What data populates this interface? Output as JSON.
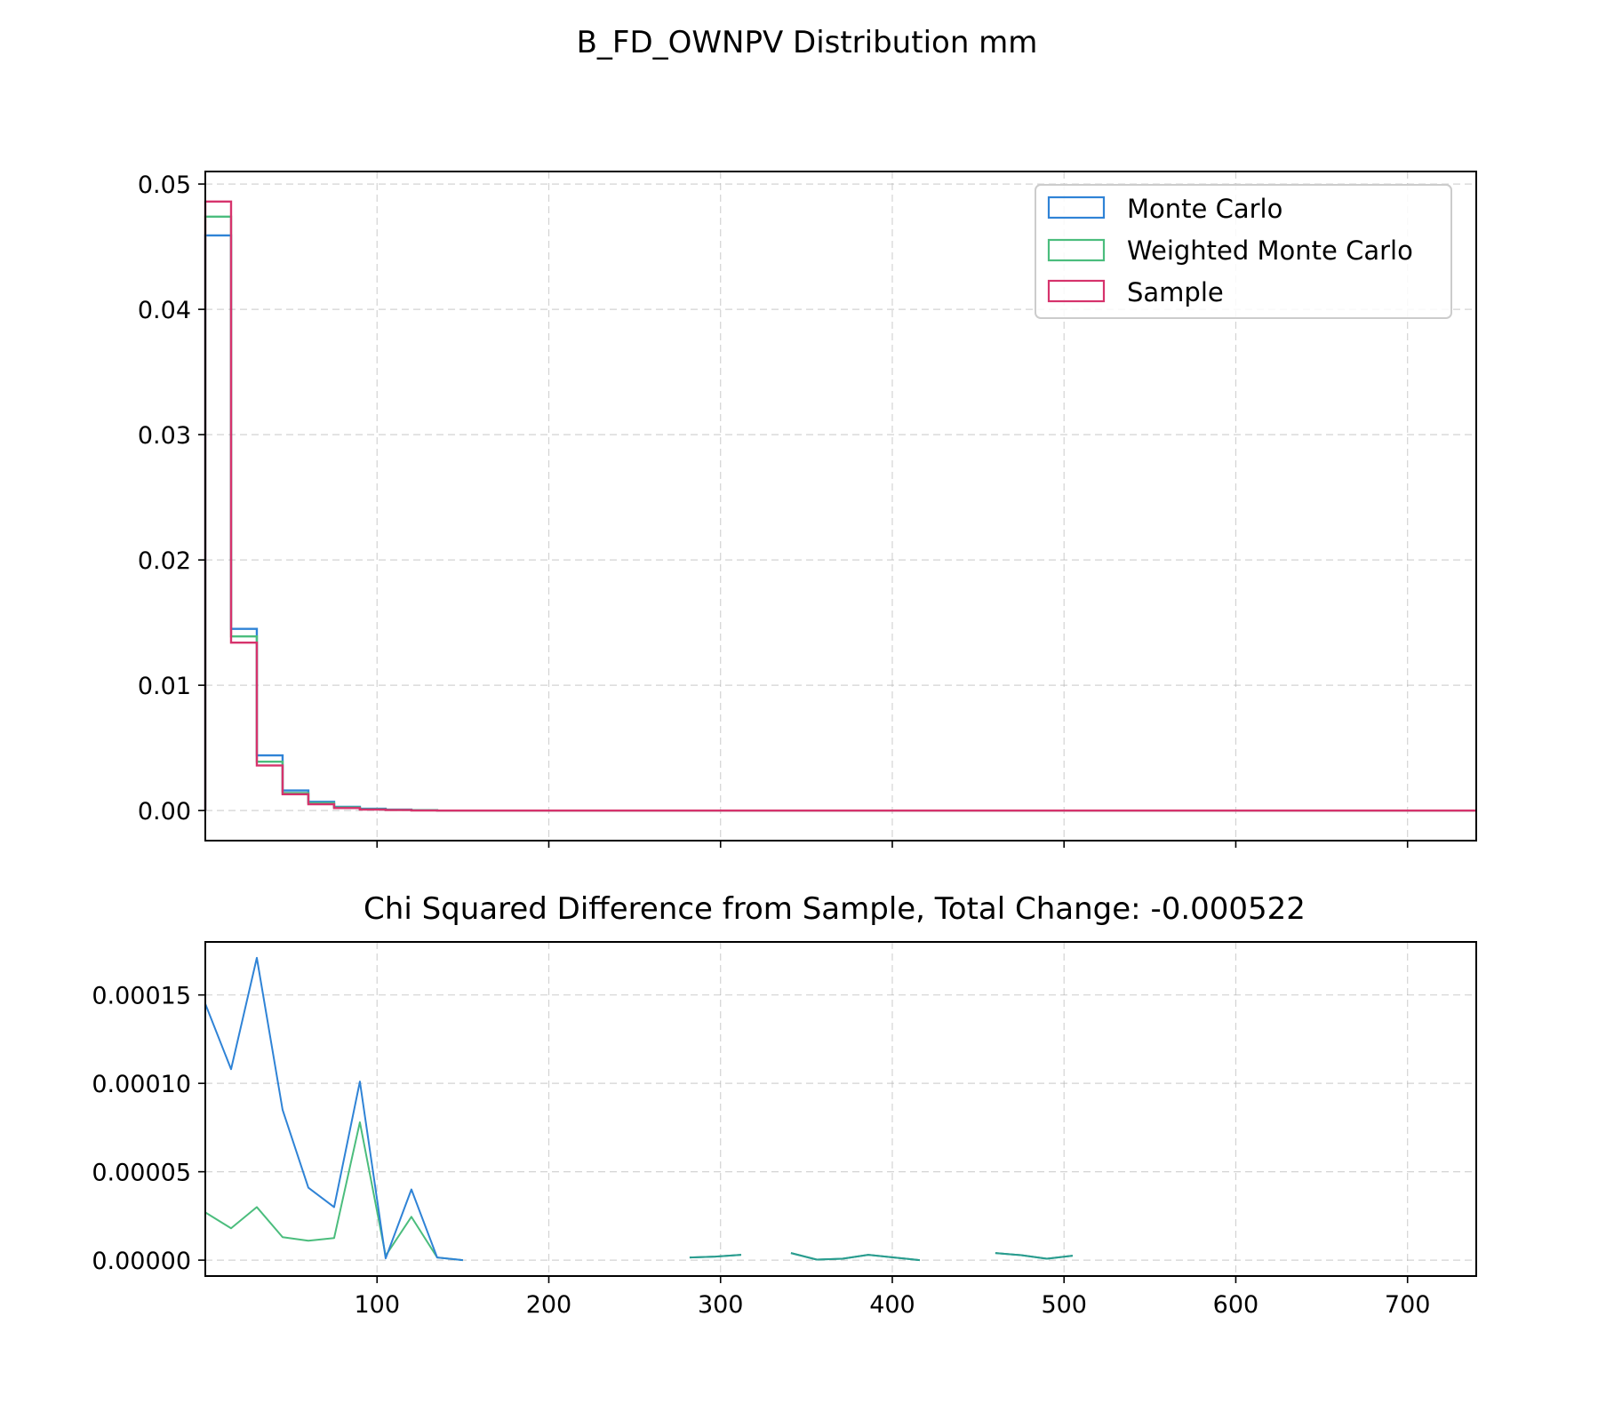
{
  "figure_title": "B_FD_OWNPV Distribution mm",
  "colors": {
    "monte_carlo": "#2f83d6",
    "weighted_monte_carlo": "#4bbd7d",
    "sample": "#d6336c",
    "overlap": "#2a9d8f"
  },
  "chart_data": [
    {
      "type": "histogram",
      "title": "",
      "xlabel": "",
      "ylabel": "",
      "xlim": [
        0,
        740
      ],
      "ylim": [
        -0.0024,
        0.051
      ],
      "xticks": [
        100,
        200,
        300,
        400,
        500,
        600,
        700
      ],
      "yticks": [
        0.0,
        0.01,
        0.02,
        0.03,
        0.04,
        0.05
      ],
      "ytick_labels": [
        "0.00",
        "0.01",
        "0.02",
        "0.03",
        "0.04",
        "0.05"
      ],
      "show_x_tick_labels": false,
      "grid": true,
      "legend_placement": "upper right",
      "bin_edges": [
        0,
        15,
        30,
        45,
        60,
        75,
        90,
        105,
        120,
        135,
        740
      ],
      "series": [
        {
          "name": "Monte Carlo",
          "color_key": "monte_carlo",
          "values": [
            0.0459,
            0.0145,
            0.0044,
            0.0016,
            0.0007,
            0.0003,
            0.00015,
            8e-05,
            3e-05,
            0.0
          ]
        },
        {
          "name": "Weighted Monte Carlo",
          "color_key": "weighted_monte_carlo",
          "values": [
            0.0474,
            0.0139,
            0.0039,
            0.0014,
            0.0006,
            0.00025,
            0.0001,
            5e-05,
            2e-05,
            0.0
          ]
        },
        {
          "name": "Sample",
          "color_key": "sample",
          "values": [
            0.0486,
            0.0134,
            0.0036,
            0.0013,
            0.0005,
            0.0002,
            8e-05,
            4e-05,
            1e-05,
            0.0
          ]
        }
      ]
    },
    {
      "type": "line",
      "title": "Chi Squared Difference from Sample, Total Change: -0.000522",
      "xlabel": "",
      "ylabel": "",
      "xlim": [
        0,
        740
      ],
      "ylim": [
        -9e-06,
        0.00018
      ],
      "xticks": [
        100,
        200,
        300,
        400,
        500,
        600,
        700
      ],
      "xtick_labels": [
        "100",
        "200",
        "300",
        "400",
        "500",
        "600",
        "700"
      ],
      "yticks": [
        0.0,
        5e-05,
        0.0001,
        0.00015
      ],
      "ytick_labels": [
        "0.00000",
        "0.00005",
        "0.00010",
        "0.00015"
      ],
      "grid": true,
      "series": [
        {
          "name": "Monte Carlo",
          "color_key": "monte_carlo",
          "segments": [
            [
              [
                0,
                0.000145
              ],
              [
                15,
                0.000108
              ],
              [
                30,
                0.000171
              ],
              [
                45,
                8.5e-05
              ],
              [
                60,
                4.1e-05
              ],
              [
                75,
                3e-05
              ],
              [
                90,
                0.000101
              ],
              [
                105,
                1e-06
              ],
              [
                120,
                4e-05
              ],
              [
                135,
                1.5e-06
              ],
              [
                150,
                0.0
              ]
            ],
            [
              [
                282,
                1.5e-06
              ],
              [
                297,
                2e-06
              ],
              [
                312,
                3e-06
              ]
            ],
            [
              [
                341,
                4e-06
              ],
              [
                356,
                3e-07
              ],
              [
                371,
                8e-07
              ],
              [
                386,
                3e-06
              ],
              [
                401,
                1.5e-06
              ],
              [
                416,
                0.0
              ]
            ],
            [
              [
                460,
                4e-06
              ],
              [
                475,
                2.8e-06
              ],
              [
                490,
                8e-07
              ],
              [
                505,
                2.5e-06
              ]
            ]
          ]
        },
        {
          "name": "Weighted Monte Carlo",
          "color_key": "weighted_monte_carlo",
          "segments": [
            [
              [
                0,
                2.7e-05
              ],
              [
                15,
                1.8e-05
              ],
              [
                30,
                3e-05
              ],
              [
                45,
                1.3e-05
              ],
              [
                60,
                1.1e-05
              ],
              [
                75,
                1.25e-05
              ],
              [
                90,
                7.8e-05
              ],
              [
                105,
                2.5e-06
              ],
              [
                120,
                2.45e-05
              ],
              [
                135,
                1.5e-06
              ],
              [
                150,
                0.0
              ]
            ],
            [
              [
                282,
                1.5e-06
              ],
              [
                297,
                2e-06
              ],
              [
                312,
                3e-06
              ]
            ],
            [
              [
                341,
                4e-06
              ],
              [
                356,
                3e-07
              ],
              [
                371,
                8e-07
              ],
              [
                386,
                3e-06
              ],
              [
                401,
                1.5e-06
              ],
              [
                416,
                0.0
              ]
            ],
            [
              [
                460,
                4e-06
              ],
              [
                475,
                2.8e-06
              ],
              [
                490,
                8e-07
              ],
              [
                505,
                2.5e-06
              ]
            ]
          ]
        }
      ]
    }
  ]
}
